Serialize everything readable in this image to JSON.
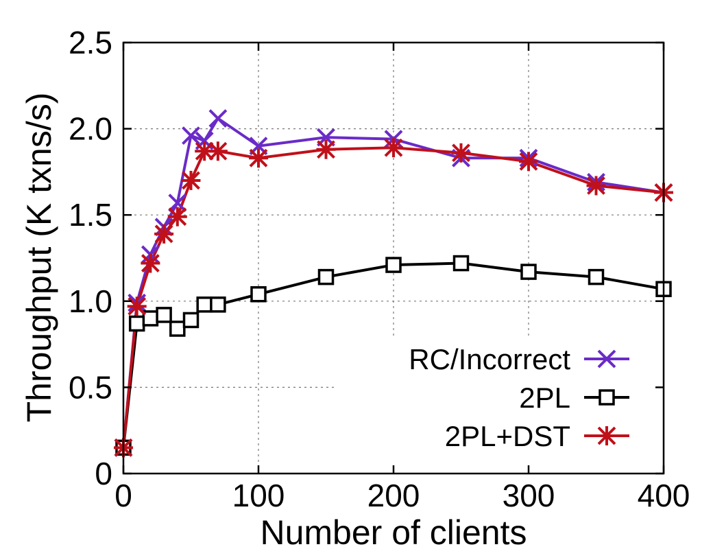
{
  "chart_data": {
    "type": "line",
    "xlabel": "Number of clients",
    "ylabel": "Throughput (K txns/s)",
    "xlim": [
      0,
      400
    ],
    "ylim": [
      0,
      2.5
    ],
    "x_ticks": [
      0,
      100,
      200,
      300,
      400
    ],
    "x_tick_labels": [
      "0",
      "100",
      "200",
      "300",
      "400"
    ],
    "y_ticks": [
      0,
      0.5,
      1.0,
      1.5,
      2.0,
      2.5
    ],
    "y_tick_labels": [
      "0",
      "0.5",
      "1.0",
      "1.5",
      "2.0",
      "2.5"
    ],
    "grid": true,
    "legend_position": "bottom-right",
    "series": [
      {
        "name": "RC/Incorrect",
        "color": "#6a2bc8",
        "marker": "x",
        "x": [
          0,
          10,
          20,
          30,
          40,
          50,
          60,
          70,
          100,
          150,
          200,
          250,
          300,
          350,
          400
        ],
        "y": [
          0.15,
          0.99,
          1.27,
          1.43,
          1.57,
          1.96,
          1.93,
          2.06,
          1.9,
          1.95,
          1.94,
          1.83,
          1.83,
          1.69,
          1.63
        ]
      },
      {
        "name": "2PL",
        "color": "#000000",
        "marker": "square",
        "x": [
          0,
          10,
          20,
          30,
          40,
          50,
          60,
          70,
          100,
          150,
          200,
          250,
          300,
          350,
          400
        ],
        "y": [
          0.15,
          0.87,
          0.9,
          0.92,
          0.84,
          0.89,
          0.98,
          0.98,
          1.04,
          1.14,
          1.21,
          1.22,
          1.17,
          1.14,
          1.07
        ]
      },
      {
        "name": "2PL+DST",
        "color": "#c0101a",
        "marker": "star",
        "x": [
          0,
          10,
          20,
          30,
          40,
          50,
          60,
          70,
          100,
          150,
          200,
          250,
          300,
          350,
          400
        ],
        "y": [
          0.15,
          0.97,
          1.22,
          1.39,
          1.49,
          1.7,
          1.87,
          1.87,
          1.83,
          1.88,
          1.89,
          1.86,
          1.81,
          1.67,
          1.63
        ]
      }
    ]
  }
}
